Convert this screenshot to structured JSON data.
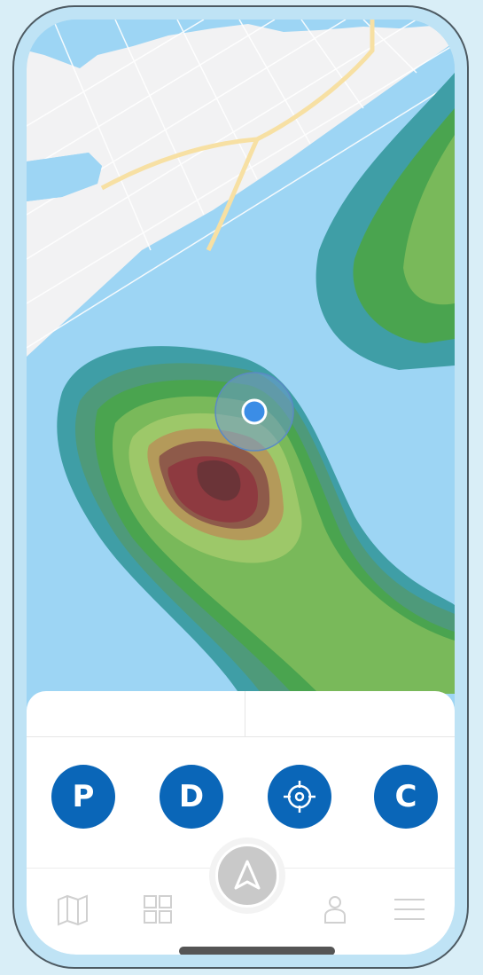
{
  "search": {
    "left_label": "",
    "right_label": ""
  },
  "actions": [
    {
      "label": "P",
      "icon": null
    },
    {
      "label": "D",
      "icon": null
    },
    {
      "label": "",
      "icon": "crosshair-icon"
    },
    {
      "label": "C",
      "icon": null
    }
  ],
  "nav": {
    "items": [
      {
        "icon": "map-icon"
      },
      {
        "icon": "grid-icon"
      },
      {
        "icon": "navigation-arrow-icon"
      },
      {
        "icon": "profile-icon"
      },
      {
        "icon": "menu-icon"
      }
    ]
  },
  "colors": {
    "water": "#9dd5f4",
    "land": "#f2f2f3",
    "road": "#f7e0a3",
    "action_button": "#0a66b8",
    "location_dot": "#3b8de6",
    "heat_low": "#3f9ea6",
    "heat_mid": "#4aa44f",
    "heat_high": "#9dc869",
    "heat_peak": "#8e3a40"
  }
}
